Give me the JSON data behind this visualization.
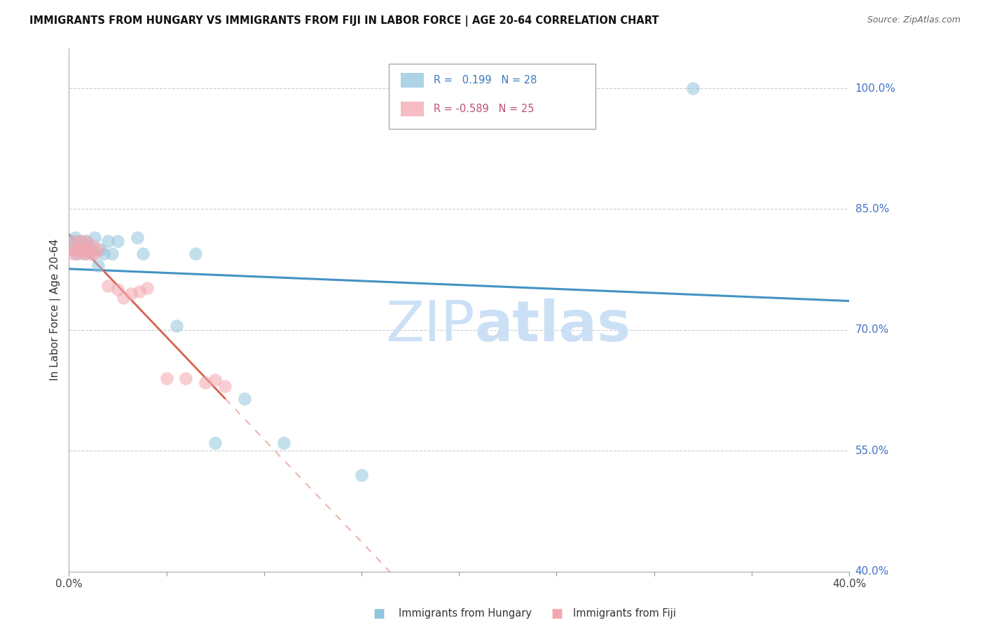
{
  "title": "IMMIGRANTS FROM HUNGARY VS IMMIGRANTS FROM FIJI IN LABOR FORCE | AGE 20-64 CORRELATION CHART",
  "source": "Source: ZipAtlas.com",
  "ylabel": "In Labor Force | Age 20-64",
  "xlim": [
    0.0,
    0.4
  ],
  "ylim": [
    0.4,
    1.05
  ],
  "yticks": [
    0.4,
    0.55,
    0.7,
    0.85,
    1.0
  ],
  "ytick_labels": [
    "40.0%",
    "55.0%",
    "70.0%",
    "85.0%",
    "100.0%"
  ],
  "xticks": [
    0.0,
    0.05,
    0.1,
    0.15,
    0.2,
    0.25,
    0.3,
    0.35,
    0.4
  ],
  "hungary_x": [
    0.001,
    0.002,
    0.003,
    0.004,
    0.005,
    0.006,
    0.007,
    0.008,
    0.009,
    0.01,
    0.011,
    0.012,
    0.013,
    0.015,
    0.016,
    0.018,
    0.02,
    0.022,
    0.025,
    0.035,
    0.038,
    0.055,
    0.065,
    0.075,
    0.09,
    0.11,
    0.15,
    0.32
  ],
  "hungary_y": [
    0.81,
    0.8,
    0.815,
    0.795,
    0.805,
    0.81,
    0.8,
    0.795,
    0.81,
    0.805,
    0.8,
    0.795,
    0.815,
    0.78,
    0.8,
    0.795,
    0.81,
    0.795,
    0.81,
    0.815,
    0.795,
    0.705,
    0.795,
    0.56,
    0.615,
    0.56,
    0.52,
    1.0
  ],
  "fiji_x": [
    0.001,
    0.002,
    0.003,
    0.004,
    0.005,
    0.006,
    0.007,
    0.008,
    0.009,
    0.01,
    0.011,
    0.012,
    0.013,
    0.015,
    0.02,
    0.025,
    0.028,
    0.032,
    0.036,
    0.04,
    0.05,
    0.06,
    0.07,
    0.075,
    0.08
  ],
  "fiji_y": [
    0.8,
    0.795,
    0.81,
    0.8,
    0.795,
    0.81,
    0.8,
    0.795,
    0.81,
    0.8,
    0.795,
    0.805,
    0.795,
    0.8,
    0.755,
    0.75,
    0.74,
    0.745,
    0.748,
    0.752,
    0.64,
    0.64,
    0.635,
    0.638,
    0.63
  ],
  "hungary_R": 0.199,
  "hungary_N": 28,
  "fiji_R": -0.589,
  "fiji_N": 25,
  "hungary_color": "#92c5de",
  "fiji_color": "#f4a6b0",
  "trend_hungary_color": "#4393c3",
  "trend_fiji_color": "#d6604d",
  "grid_color": "#cccccc",
  "background_color": "#ffffff",
  "watermark_color": "#cce0f5"
}
